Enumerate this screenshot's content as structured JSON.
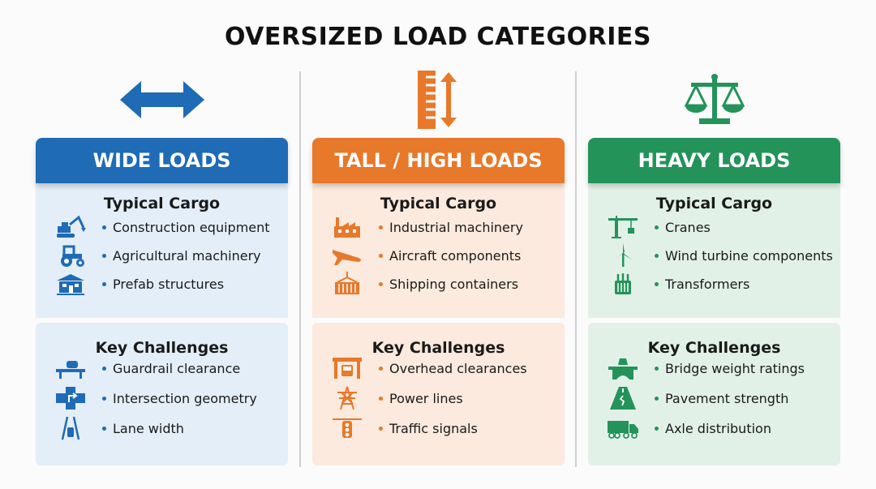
{
  "title": "OVERSIZED LOAD CATEGORIES",
  "columns": [
    {
      "id": "wide",
      "header": "WIDE LOADS",
      "icon": "horizontal-double-arrow-icon",
      "color": "#1f6bb5",
      "panel_color": "#e4eef8",
      "cargo_title": "Typical Cargo",
      "cargo": [
        {
          "label": "Construction equipment",
          "icon": "excavator-icon"
        },
        {
          "label": "Agricultural machinery",
          "icon": "tractor-icon"
        },
        {
          "label": "Prefab structures",
          "icon": "prefab-building-icon"
        }
      ],
      "challenges_title": "Key Challenges",
      "challenges": [
        {
          "label": "Guardrail clearance",
          "icon": "guardrail-car-icon"
        },
        {
          "label": "Intersection geometry",
          "icon": "intersection-icon"
        },
        {
          "label": "Lane width",
          "icon": "lane-car-icon"
        }
      ]
    },
    {
      "id": "tall",
      "header": "TALL / HIGH LOADS",
      "icon": "ruler-vertical-arrow-icon",
      "color": "#e8782a",
      "panel_color": "#fbeadd",
      "cargo_title": "Typical Cargo",
      "cargo": [
        {
          "label": "Industrial machinery",
          "icon": "factory-icon"
        },
        {
          "label": "Aircraft components",
          "icon": "airplane-icon"
        },
        {
          "label": "Shipping containers",
          "icon": "container-hook-icon"
        }
      ],
      "challenges_title": "Key Challenges",
      "challenges": [
        {
          "label": "Overhead clearances",
          "icon": "overpass-truck-icon"
        },
        {
          "label": "Power lines",
          "icon": "power-tower-icon"
        },
        {
          "label": "Traffic signals",
          "icon": "traffic-light-icon"
        }
      ]
    },
    {
      "id": "heavy",
      "header": "HEAVY LOADS",
      "icon": "balance-scale-icon",
      "color": "#23935a",
      "panel_color": "#e2f1e7",
      "cargo_title": "Typical Cargo",
      "cargo": [
        {
          "label": "Cranes",
          "icon": "tower-crane-icon"
        },
        {
          "label": "Wind turbine components",
          "icon": "wind-turbine-icon"
        },
        {
          "label": "Transformers",
          "icon": "transformer-icon"
        }
      ],
      "challenges_title": "Key Challenges",
      "challenges": [
        {
          "label": "Bridge weight ratings",
          "icon": "bridge-weight-icon"
        },
        {
          "label": "Pavement strength",
          "icon": "cracked-road-icon"
        },
        {
          "label": "Axle distribution",
          "icon": "truck-axles-icon"
        }
      ]
    }
  ]
}
